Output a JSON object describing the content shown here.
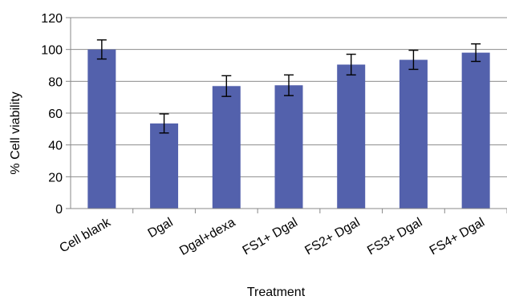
{
  "chart_data": {
    "type": "bar",
    "xlabel": "Treatment",
    "ylabel": "% Cell viability",
    "ylim": [
      0,
      120
    ],
    "yticks": [
      "0",
      "20",
      "40",
      "60",
      "80",
      "100",
      "120"
    ],
    "grid": true,
    "categories": [
      "Cell blank",
      "Dgal",
      "Dgal+dexa",
      "FS1+ Dgal",
      "FS2+ Dgal",
      "FS3+ Dgal",
      "FS4+ Dgal"
    ],
    "values": [
      100,
      53.5,
      77,
      77.5,
      90.5,
      93.5,
      98
    ],
    "error": [
      6,
      6,
      6.5,
      6.5,
      6.5,
      6,
      5.5
    ],
    "bar_color": "#5361AC"
  }
}
